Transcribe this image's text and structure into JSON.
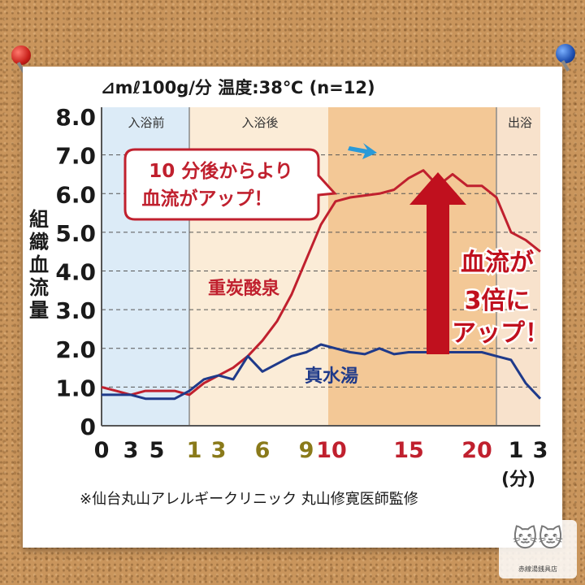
{
  "title": "⊿mℓ100g/分  温度:38℃ (n=12)",
  "credit": "※仙台丸山アレルギークリニック 丸山修寛医師監修",
  "watermark_text": "赤線湯銭具店",
  "colors": {
    "background": "#c9955c",
    "card": "#ffffff",
    "series_carbonated": "#c0202e",
    "series_water": "#1f3a8a",
    "zone_before": "#dcebf7",
    "zone_after_early": "#fbecd7",
    "zone_after_late": "#f3c896",
    "zone_exit": "#f8e2cc",
    "callout_border": "#c0202e",
    "arrow": "#c0101e",
    "small_arrow": "#2a9ad8"
  },
  "chart_data": {
    "type": "line",
    "ylabel": "組織血流量",
    "yticks": [
      "0",
      "1.0",
      "2.0",
      "3.0",
      "4.0",
      "5.0",
      "6.0",
      "7.0",
      "8.0"
    ],
    "ylim": [
      0,
      8
    ],
    "grid": "dashed horizontal",
    "phases": [
      {
        "label": "入浴前"
      },
      {
        "label": "入浴後"
      },
      {
        "label": ""
      },
      {
        "label": "出浴"
      }
    ],
    "x_tick_labels": [
      {
        "text": "0",
        "color": "#1a1a1a"
      },
      {
        "text": "3",
        "color": "#1a1a1a"
      },
      {
        "text": "5",
        "color": "#1a1a1a"
      },
      {
        "text": "1",
        "color": "#8a7a1a"
      },
      {
        "text": "3",
        "color": "#8a7a1a"
      },
      {
        "text": "6",
        "color": "#8a7a1a"
      },
      {
        "text": "9",
        "color": "#8a7a1a"
      },
      {
        "text": "10",
        "color": "#c0202e"
      },
      {
        "text": "15",
        "color": "#c0202e"
      },
      {
        "text": "20",
        "color": "#c0202e"
      },
      {
        "text": "1",
        "color": "#1a1a1a"
      },
      {
        "text": "3",
        "color": "#1a1a1a"
      }
    ],
    "x_unit": "(分)",
    "series": [
      {
        "name": "重炭酸泉",
        "x": [
          0,
          1,
          2,
          3,
          4,
          5,
          6,
          7,
          8,
          9,
          10,
          11,
          12,
          13,
          14,
          15,
          16,
          17,
          18,
          19,
          20,
          21,
          22,
          23,
          24,
          25,
          26,
          27,
          28,
          29,
          30
        ],
        "values": [
          1.0,
          0.9,
          0.8,
          0.9,
          0.9,
          0.9,
          0.8,
          1.1,
          1.3,
          1.5,
          1.8,
          2.2,
          2.7,
          3.4,
          4.3,
          5.2,
          5.8,
          5.9,
          5.95,
          6.0,
          6.1,
          6.4,
          6.6,
          6.2,
          6.5,
          6.2,
          6.2,
          5.9,
          5.0,
          4.8,
          4.5
        ]
      },
      {
        "name": "真水湯",
        "x": [
          0,
          1,
          2,
          3,
          4,
          5,
          6,
          7,
          8,
          9,
          10,
          11,
          12,
          13,
          14,
          15,
          16,
          17,
          18,
          19,
          20,
          21,
          22,
          23,
          24,
          25,
          26,
          27,
          28,
          29,
          30
        ],
        "values": [
          0.8,
          0.8,
          0.8,
          0.7,
          0.7,
          0.7,
          0.9,
          1.2,
          1.3,
          1.2,
          1.8,
          1.4,
          1.6,
          1.8,
          1.9,
          2.1,
          2.0,
          1.9,
          1.85,
          2.0,
          1.85,
          1.9,
          1.9,
          1.9,
          1.9,
          1.9,
          1.9,
          1.8,
          1.7,
          1.1,
          0.7
        ]
      }
    ],
    "annotations": {
      "callout": [
        "10 分後からより",
        "血流がアップ！"
      ],
      "big_arrow_text": [
        "血流が",
        "3倍に",
        "アップ！"
      ]
    }
  }
}
